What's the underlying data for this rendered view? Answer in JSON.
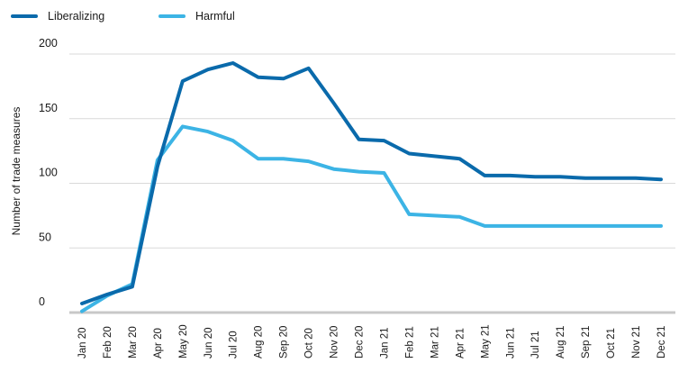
{
  "chart_data": {
    "type": "line",
    "title": "",
    "xlabel": "",
    "ylabel": "Number of trade measures",
    "ylim": [
      0,
      200
    ],
    "yticks": [
      0,
      50,
      100,
      150,
      200
    ],
    "grid": true,
    "legend_position": "top-left",
    "categories": [
      "Jan 20",
      "Feb 20",
      "Mar 20",
      "Apr 20",
      "May 20",
      "Jun 20",
      "Jul 20",
      "Aug 20",
      "Sep 20",
      "Oct 20",
      "Nov 20",
      "Dec 20",
      "Jan 21",
      "Feb 21",
      "Mar 21",
      "Apr 21",
      "May 21",
      "Jun 21",
      "Jul 21",
      "Aug 21",
      "Sep 21",
      "Oct 21",
      "Nov 21",
      "Dec 21"
    ],
    "series": [
      {
        "name": "Liberalizing",
        "color": "#0a6aab",
        "values": [
          7,
          14,
          20,
          113,
          179,
          188,
          193,
          182,
          181,
          189,
          162,
          134,
          133,
          123,
          121,
          119,
          106,
          106,
          105,
          105,
          104,
          104,
          104,
          103
        ]
      },
      {
        "name": "Harmful",
        "color": "#3cb4e5",
        "values": [
          1,
          13,
          22,
          118,
          144,
          140,
          133,
          119,
          119,
          117,
          111,
          109,
          108,
          76,
          75,
          74,
          67,
          67,
          67,
          67,
          67,
          67,
          67,
          67
        ]
      }
    ]
  }
}
